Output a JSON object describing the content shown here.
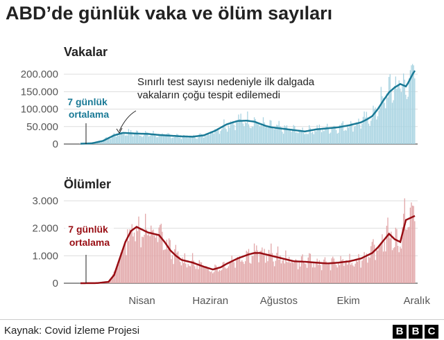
{
  "title": "ABD’de günlük vaka ve ölüm sayıları",
  "source": "Kaynak: Covid İzleme Projesi",
  "logo": [
    "B",
    "B",
    "C"
  ],
  "colors": {
    "cases_line": "#1a7a96",
    "cases_bar": "#a9d4e2",
    "deaths_line": "#980d13",
    "deaths_bar": "#e2a7a9",
    "grid": "#dddddd"
  },
  "chart_data": [
    {
      "type": "line",
      "panel": "Vakalar",
      "line_label": "7 günlük ortalama",
      "annotation": "Sınırlı test sayısı nedeniyle ilk dalgada vakaların çoğu tespit edilemedi",
      "annotation_lines": [
        "Sınırlı test sayısı nedeniyle ilk dalgada",
        "vakaların çoğu tespit edilemedi"
      ],
      "avg_label_lines": [
        "7 günlük",
        "ortalama"
      ],
      "yticks": [
        "200.000",
        "150.000",
        "100.000",
        "50.000",
        "0"
      ],
      "ytick_values": [
        200000,
        150000,
        100000,
        50000,
        0
      ],
      "ylim": [
        0,
        230000
      ],
      "x_months": [
        "Nisan",
        "Haziran",
        "Ağustos",
        "Ekim",
        "Aralık"
      ],
      "x_month_days": [
        30,
        91,
        152,
        214,
        275
      ],
      "xlim": [
        0,
        298
      ],
      "bars": "daily reported values fluctuating around the 7-day average",
      "avg_points": [
        [
          0,
          1000
        ],
        [
          10,
          2000
        ],
        [
          20,
          9000
        ],
        [
          30,
          25000
        ],
        [
          38,
          32000
        ],
        [
          50,
          30000
        ],
        [
          60,
          29000
        ],
        [
          70,
          26000
        ],
        [
          80,
          24000
        ],
        [
          90,
          22000
        ],
        [
          100,
          21000
        ],
        [
          110,
          25000
        ],
        [
          120,
          38000
        ],
        [
          130,
          56000
        ],
        [
          140,
          66000
        ],
        [
          148,
          67000
        ],
        [
          155,
          64000
        ],
        [
          160,
          58000
        ],
        [
          165,
          52000
        ],
        [
          170,
          48000
        ],
        [
          180,
          44000
        ],
        [
          190,
          40000
        ],
        [
          200,
          36000
        ],
        [
          210,
          42000
        ],
        [
          220,
          45000
        ],
        [
          230,
          48000
        ],
        [
          240,
          54000
        ],
        [
          250,
          62000
        ],
        [
          255,
          70000
        ],
        [
          260,
          80000
        ],
        [
          265,
          100000
        ],
        [
          270,
          125000
        ],
        [
          275,
          148000
        ],
        [
          280,
          162000
        ],
        [
          285,
          172000
        ],
        [
          290,
          165000
        ],
        [
          292,
          175000
        ],
        [
          296,
          200000
        ],
        [
          298,
          210000
        ]
      ]
    },
    {
      "type": "line",
      "panel": "Ölümler",
      "line_label": "7 günlük ortalama",
      "avg_label_lines": [
        "7 günlük",
        "ortalama"
      ],
      "yticks": [
        "3.000",
        "2.000",
        "1.000",
        "0"
      ],
      "ytick_values": [
        3000,
        2000,
        1000,
        0
      ],
      "ylim": [
        0,
        3200
      ],
      "x_months": [
        "Nisan",
        "Haziran",
        "Ağustos",
        "Ekim",
        "Aralık"
      ],
      "x_month_days": [
        30,
        91,
        152,
        214,
        275
      ],
      "xlim": [
        0,
        298
      ],
      "bars": "daily reported values fluctuating around the 7-day average",
      "avg_points": [
        [
          0,
          0
        ],
        [
          15,
          5
        ],
        [
          25,
          50
        ],
        [
          30,
          300
        ],
        [
          35,
          900
        ],
        [
          40,
          1500
        ],
        [
          45,
          1900
        ],
        [
          50,
          2050
        ],
        [
          55,
          1950
        ],
        [
          60,
          1850
        ],
        [
          65,
          1800
        ],
        [
          70,
          1750
        ],
        [
          75,
          1500
        ],
        [
          80,
          1200
        ],
        [
          85,
          1000
        ],
        [
          90,
          850
        ],
        [
          100,
          750
        ],
        [
          110,
          600
        ],
        [
          118,
          500
        ],
        [
          125,
          580
        ],
        [
          130,
          700
        ],
        [
          140,
          900
        ],
        [
          150,
          1050
        ],
        [
          155,
          1100
        ],
        [
          160,
          1100
        ],
        [
          165,
          1050
        ],
        [
          170,
          1000
        ],
        [
          180,
          900
        ],
        [
          190,
          800
        ],
        [
          200,
          780
        ],
        [
          210,
          750
        ],
        [
          220,
          720
        ],
        [
          230,
          750
        ],
        [
          240,
          800
        ],
        [
          250,
          900
        ],
        [
          260,
          1100
        ],
        [
          265,
          1300
        ],
        [
          270,
          1550
        ],
        [
          275,
          1800
        ],
        [
          280,
          1600
        ],
        [
          285,
          1500
        ],
        [
          290,
          2300
        ],
        [
          298,
          2450
        ]
      ]
    }
  ]
}
